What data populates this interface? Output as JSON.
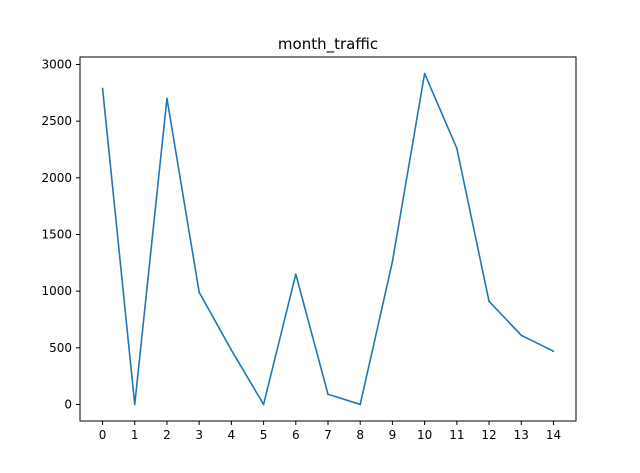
{
  "chart_data": {
    "type": "line",
    "title": "month_traffic",
    "xlabel": "",
    "ylabel": "",
    "x": [
      0,
      1,
      2,
      3,
      4,
      5,
      6,
      7,
      8,
      9,
      10,
      11,
      12,
      13,
      14
    ],
    "series": [
      {
        "values": [
          2790,
          0,
          2700,
          990,
          480,
          0,
          1150,
          90,
          0,
          1260,
          2920,
          2260,
          910,
          610,
          470
        ],
        "color": "#1f77b4"
      }
    ],
    "xlim": [
      -0.7,
      14.7
    ],
    "ylim": [
      -146,
      3066
    ],
    "xticks": [
      0,
      1,
      2,
      3,
      4,
      5,
      6,
      7,
      8,
      9,
      10,
      11,
      12,
      13,
      14
    ],
    "yticks": [
      0,
      500,
      1000,
      1500,
      2000,
      2500,
      3000
    ],
    "grid": false,
    "legend": "none"
  }
}
